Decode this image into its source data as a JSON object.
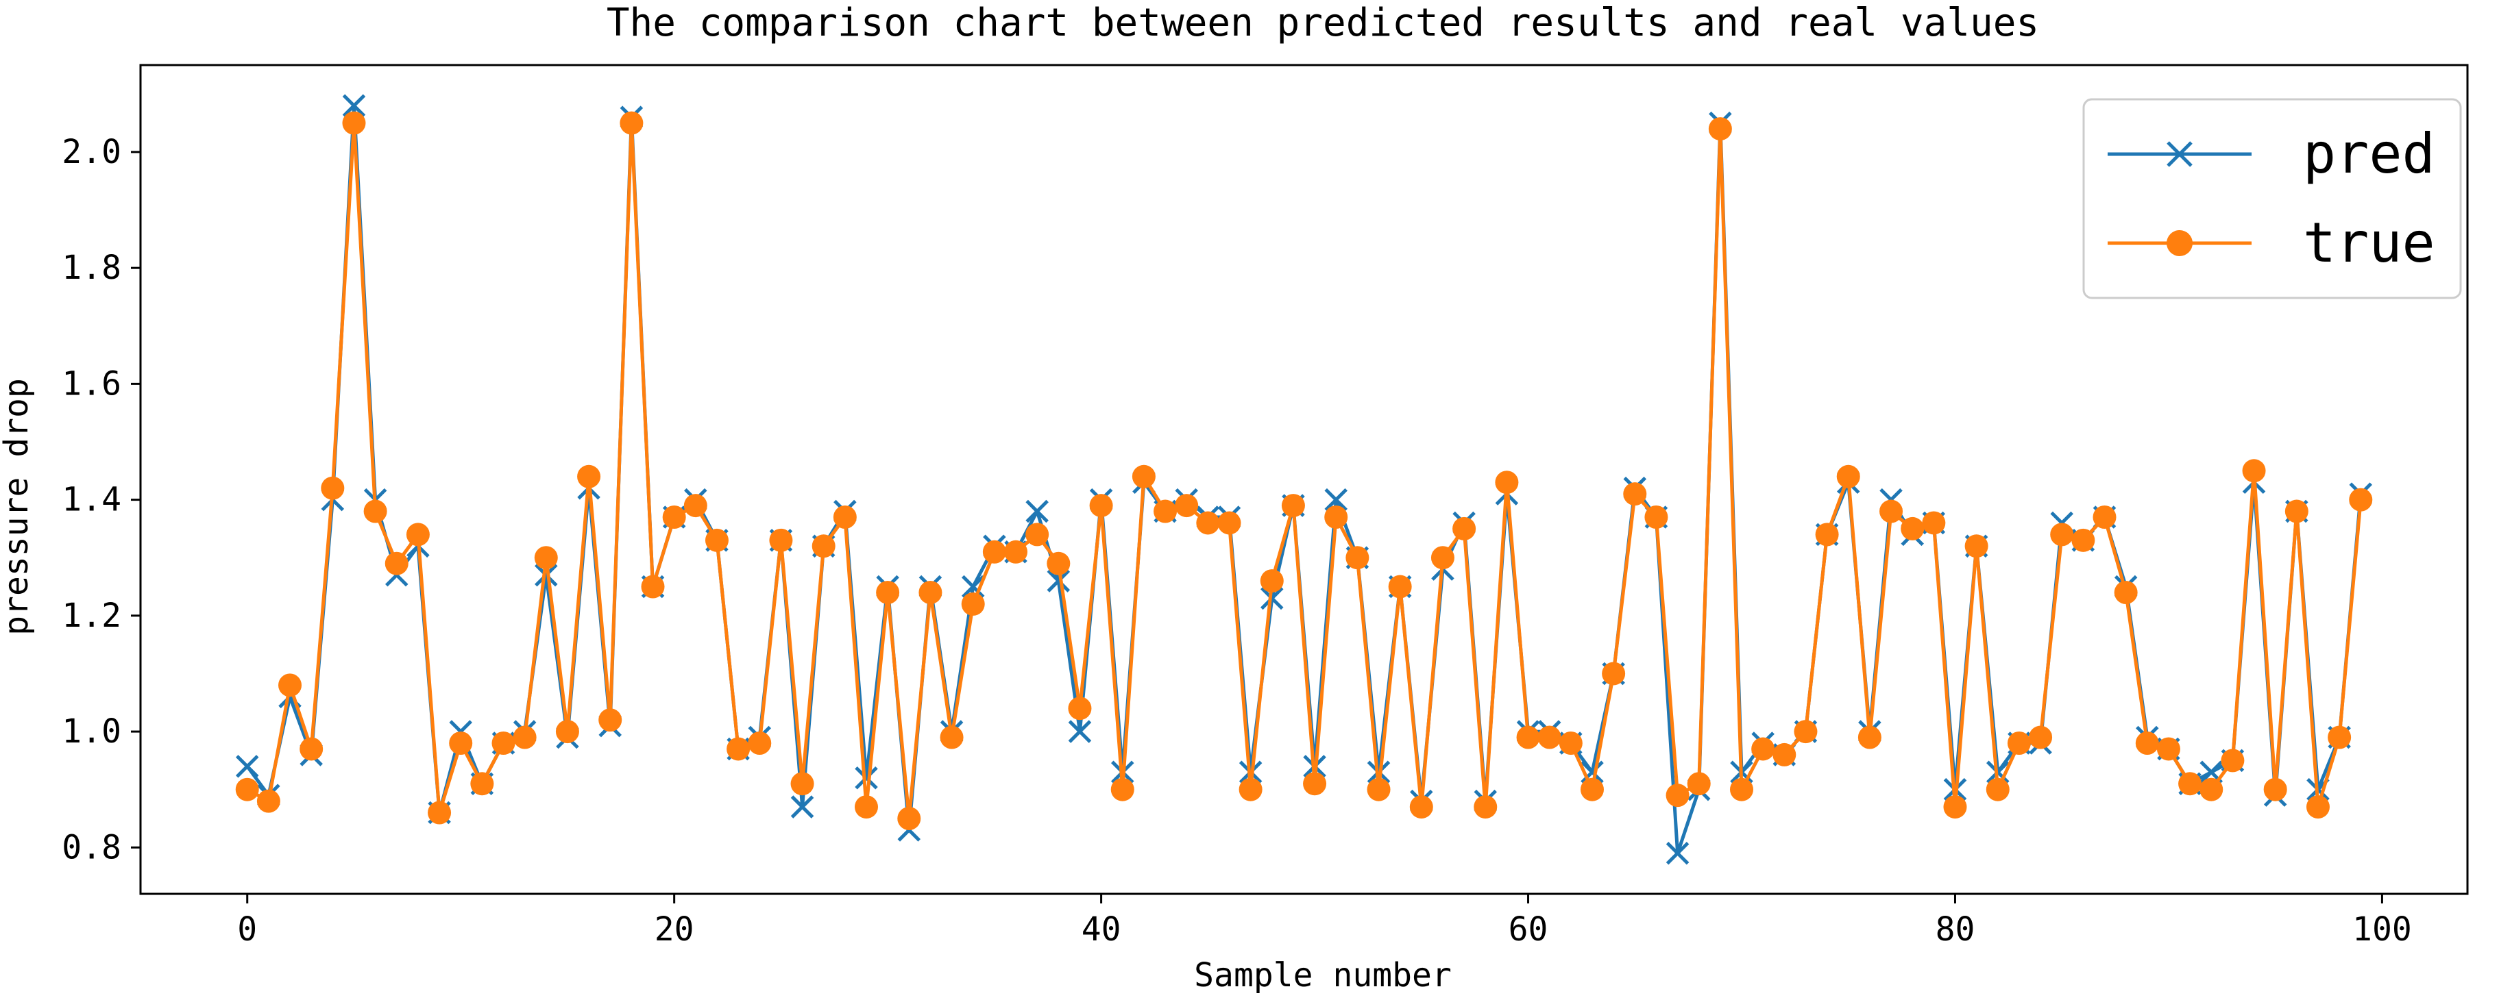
{
  "chart_data": {
    "type": "line",
    "title": "The comparison chart between predicted results and real values",
    "xlabel": "Sample number",
    "ylabel": "pressure drop",
    "xlim": [
      -5,
      104
    ],
    "ylim": [
      0.72,
      2.15
    ],
    "xticks": [
      0,
      20,
      40,
      60,
      80,
      100
    ],
    "xtick_labels": [
      "0",
      "20",
      "40",
      "60",
      "80",
      "100"
    ],
    "yticks": [
      0.8,
      1.0,
      1.2,
      1.4,
      1.6,
      1.8,
      2.0
    ],
    "ytick_labels": [
      "0.8",
      "1.0",
      "1.2",
      "1.4",
      "1.6",
      "1.8",
      "2.0"
    ],
    "grid": false,
    "legend_position": "top-right",
    "series": [
      {
        "name": "pred",
        "color": "#1f77b4",
        "marker": "x",
        "values": [
          0.94,
          0.89,
          1.06,
          0.96,
          1.4,
          2.08,
          1.4,
          1.27,
          1.32,
          0.86,
          1.0,
          0.91,
          0.98,
          1.0,
          1.27,
          0.99,
          1.42,
          1.01,
          2.06,
          1.25,
          1.37,
          1.4,
          1.33,
          0.97,
          0.99,
          1.33,
          0.87,
          1.32,
          1.38,
          0.92,
          1.25,
          0.83,
          1.25,
          1.0,
          1.25,
          1.32,
          1.31,
          1.38,
          1.26,
          1.0,
          1.4,
          0.93,
          1.43,
          1.38,
          1.4,
          1.37,
          1.37,
          0.93,
          1.23,
          1.39,
          0.94,
          1.4,
          1.3,
          0.93,
          1.25,
          0.88,
          1.28,
          1.36,
          0.88,
          1.41,
          1.0,
          1.0,
          0.98,
          0.93,
          1.1,
          1.42,
          1.37,
          0.79,
          0.9,
          2.05,
          0.93,
          0.98,
          0.96,
          1.0,
          1.34,
          1.43,
          1.0,
          1.4,
          1.34,
          1.36,
          0.9,
          1.32,
          0.93,
          0.98,
          0.98,
          1.36,
          1.33,
          1.37,
          1.25,
          0.99,
          0.97,
          0.91,
          0.93,
          0.95,
          1.43,
          0.89,
          1.38,
          0.9,
          0.99,
          1.41
        ]
      },
      {
        "name": "true",
        "color": "#ff7f0e",
        "marker": "o",
        "values": [
          0.9,
          0.88,
          1.08,
          0.97,
          1.42,
          2.05,
          1.38,
          1.29,
          1.34,
          0.86,
          0.98,
          0.91,
          0.98,
          0.99,
          1.3,
          1.0,
          1.44,
          1.02,
          2.05,
          1.25,
          1.37,
          1.39,
          1.33,
          0.97,
          0.98,
          1.33,
          0.91,
          1.32,
          1.37,
          0.87,
          1.24,
          0.85,
          1.24,
          0.99,
          1.22,
          1.31,
          1.31,
          1.34,
          1.29,
          1.04,
          1.39,
          0.9,
          1.44,
          1.38,
          1.39,
          1.36,
          1.36,
          0.9,
          1.26,
          1.39,
          0.91,
          1.37,
          1.3,
          0.9,
          1.25,
          0.87,
          1.3,
          1.35,
          0.87,
          1.43,
          0.99,
          0.99,
          0.98,
          0.9,
          1.1,
          1.41,
          1.37,
          0.89,
          0.91,
          2.04,
          0.9,
          0.97,
          0.96,
          1.0,
          1.34,
          1.44,
          0.99,
          1.38,
          1.35,
          1.36,
          0.87,
          1.32,
          0.9,
          0.98,
          0.99,
          1.34,
          1.33,
          1.37,
          1.24,
          0.98,
          0.97,
          0.91,
          0.9,
          0.95,
          1.45,
          0.9,
          1.38,
          0.87,
          0.99,
          1.4
        ]
      }
    ]
  }
}
